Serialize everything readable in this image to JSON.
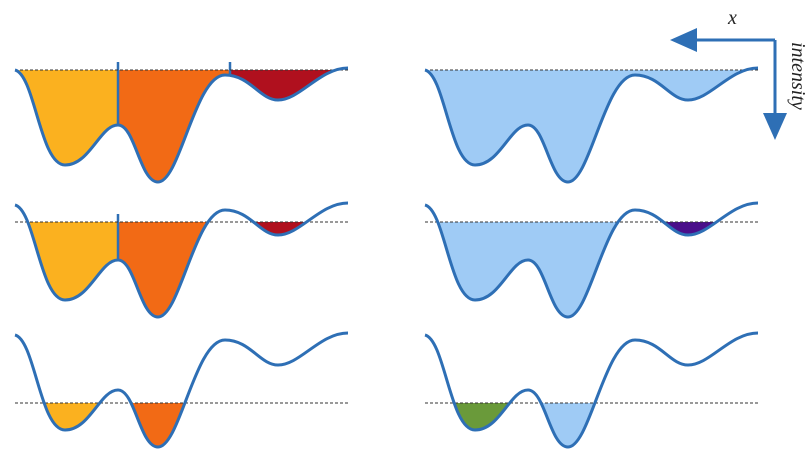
{
  "axes": {
    "x_label": "x",
    "intensity_label": "intensity"
  }
}
